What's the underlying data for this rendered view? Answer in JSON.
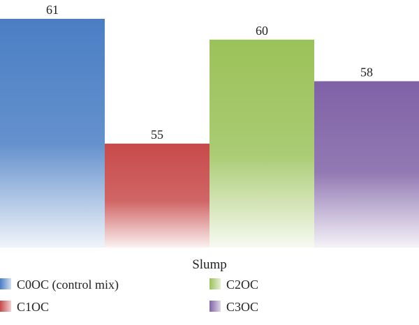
{
  "chart_data": {
    "type": "bar",
    "categories": [
      "Slump"
    ],
    "series": [
      {
        "name": "C0OC (control mix)",
        "values": [
          61
        ],
        "color": "#4a7ec4"
      },
      {
        "name": "C1OC",
        "values": [
          55
        ],
        "color": "#c84a4a"
      },
      {
        "name": "C2OC",
        "values": [
          60
        ],
        "color": "#9bc25a"
      },
      {
        "name": "C3OC",
        "values": [
          58
        ],
        "color": "#7f62a6"
      }
    ],
    "data_labels": [
      "61",
      "55",
      "60",
      "58"
    ],
    "xlabel": "Slump",
    "ylim": [
      50,
      62
    ],
    "grid": false,
    "legend_placement": "bottom"
  }
}
